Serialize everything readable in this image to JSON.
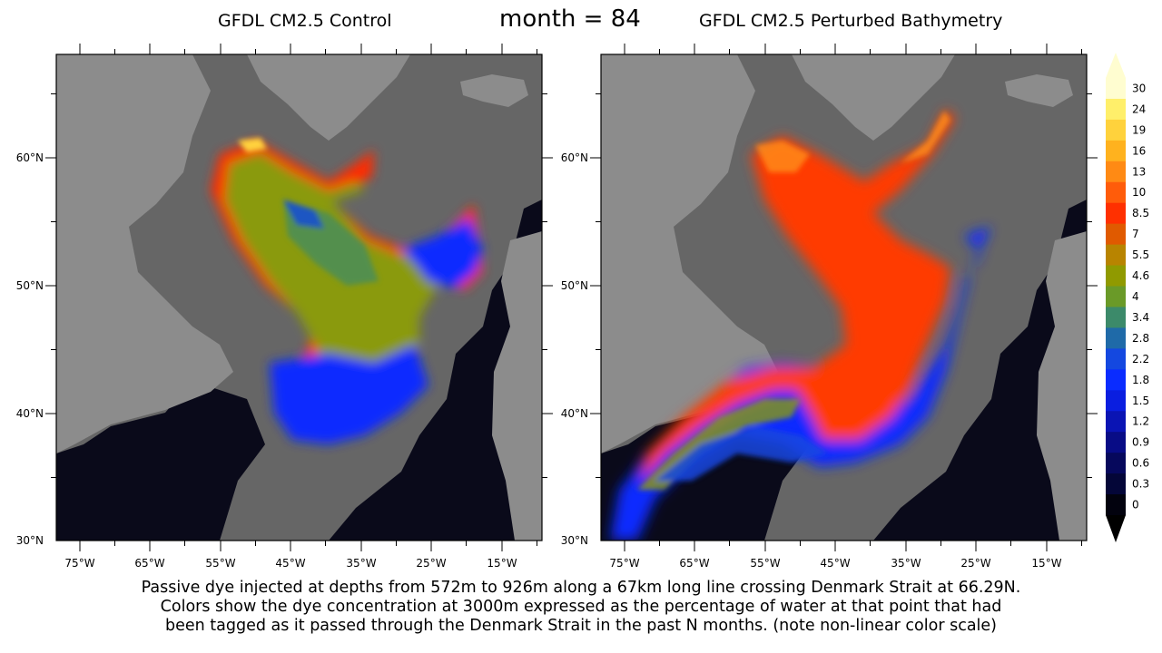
{
  "header": {
    "left_title": "GFDL CM2.5 Control",
    "center_title": "month = 84",
    "right_title": "GFDL CM2.5 Perturbed Bathymetry"
  },
  "axes": {
    "lon_labels": [
      "75°W",
      "65°W",
      "55°W",
      "45°W",
      "35°W",
      "25°W",
      "15°W"
    ],
    "lat_labels": [
      "60°N",
      "50°N",
      "40°N",
      "30°N"
    ]
  },
  "colors": {
    "land": "#8c8c8c",
    "shelf": "#666666",
    "deep_ocean": "#0a0a1a"
  },
  "colorbar": {
    "labels": [
      "30",
      "24",
      "19",
      "16",
      "13",
      "10",
      "8.5",
      "7",
      "5.5",
      "4.6",
      "4",
      "3.4",
      "2.8",
      "2.2",
      "1.8",
      "1.5",
      "1.2",
      "0.9",
      "0.6",
      "0.3",
      "0"
    ],
    "colors": [
      "#fffdd0",
      "#ffef6a",
      "#ffd23c",
      "#ffb21e",
      "#ff8a14",
      "#ff5c0a",
      "#ff3000",
      "#e05a00",
      "#b88400",
      "#909a00",
      "#6a9a28",
      "#3c8a6a",
      "#1f6aa8",
      "#1448e0",
      "#0a2cff",
      "#0a1ee0",
      "#0a14b4",
      "#080c86",
      "#06085c",
      "#040638",
      "#02020e"
    ]
  },
  "caption": {
    "line1": "Passive dye injected at depths from 572m to 926m along a 67km long line crossing Denmark Strait at 66.29N.",
    "line2": "Colors show the dye concentration at 3000m expressed as the percentage of water at that point that had",
    "line3": "been tagged as it passed through the Denmark Strait in the past N months. (note non-linear color scale)"
  }
}
